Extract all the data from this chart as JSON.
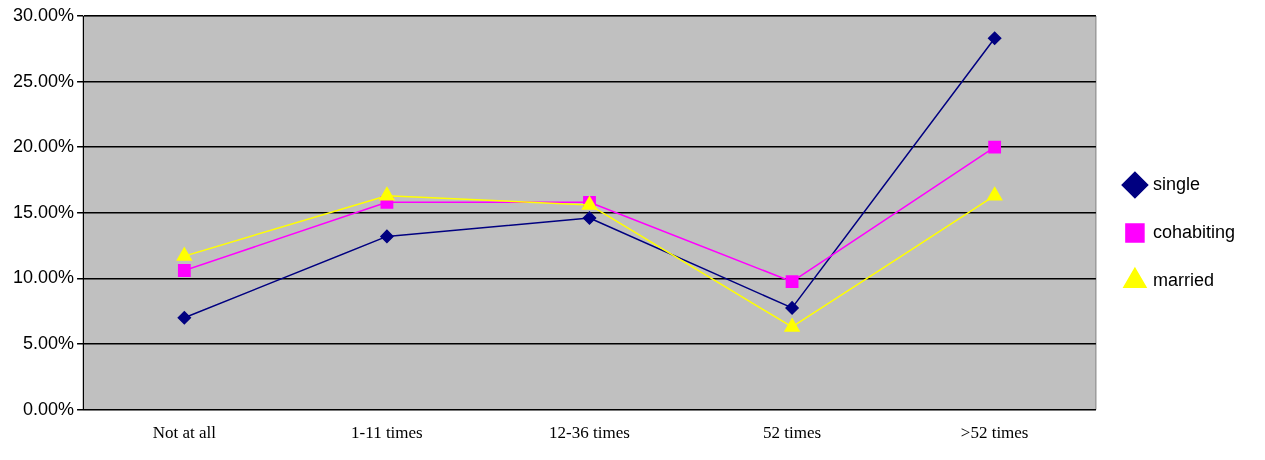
{
  "chart_data": {
    "type": "line",
    "categories": [
      "Not at all",
      "1-11 times",
      "12-36 times",
      "52 times",
      ">52 times"
    ],
    "series": [
      {
        "name": "single",
        "color": "#000080",
        "marker": "diamond",
        "values": [
          7.0,
          13.2,
          14.6,
          7.75,
          28.3
        ]
      },
      {
        "name": "cohabiting",
        "color": "#ff00ff",
        "marker": "square",
        "values": [
          10.6,
          15.8,
          15.8,
          9.75,
          20.0
        ]
      },
      {
        "name": "married",
        "color": "#ffff00",
        "marker": "triangle",
        "values": [
          11.7,
          16.3,
          15.6,
          6.3,
          16.3
        ]
      }
    ],
    "ylim": [
      0,
      30
    ],
    "yticks": [
      {
        "value": 0,
        "label": "0.00%"
      },
      {
        "value": 5,
        "label": "5.00%"
      },
      {
        "value": 10,
        "label": "10.00%"
      },
      {
        "value": 15,
        "label": "15.00%"
      },
      {
        "value": 20,
        "label": "20.00%"
      },
      {
        "value": 25,
        "label": "25.00%"
      },
      {
        "value": 30,
        "label": "30.00%"
      }
    ],
    "grid": "y",
    "legend": "right"
  }
}
